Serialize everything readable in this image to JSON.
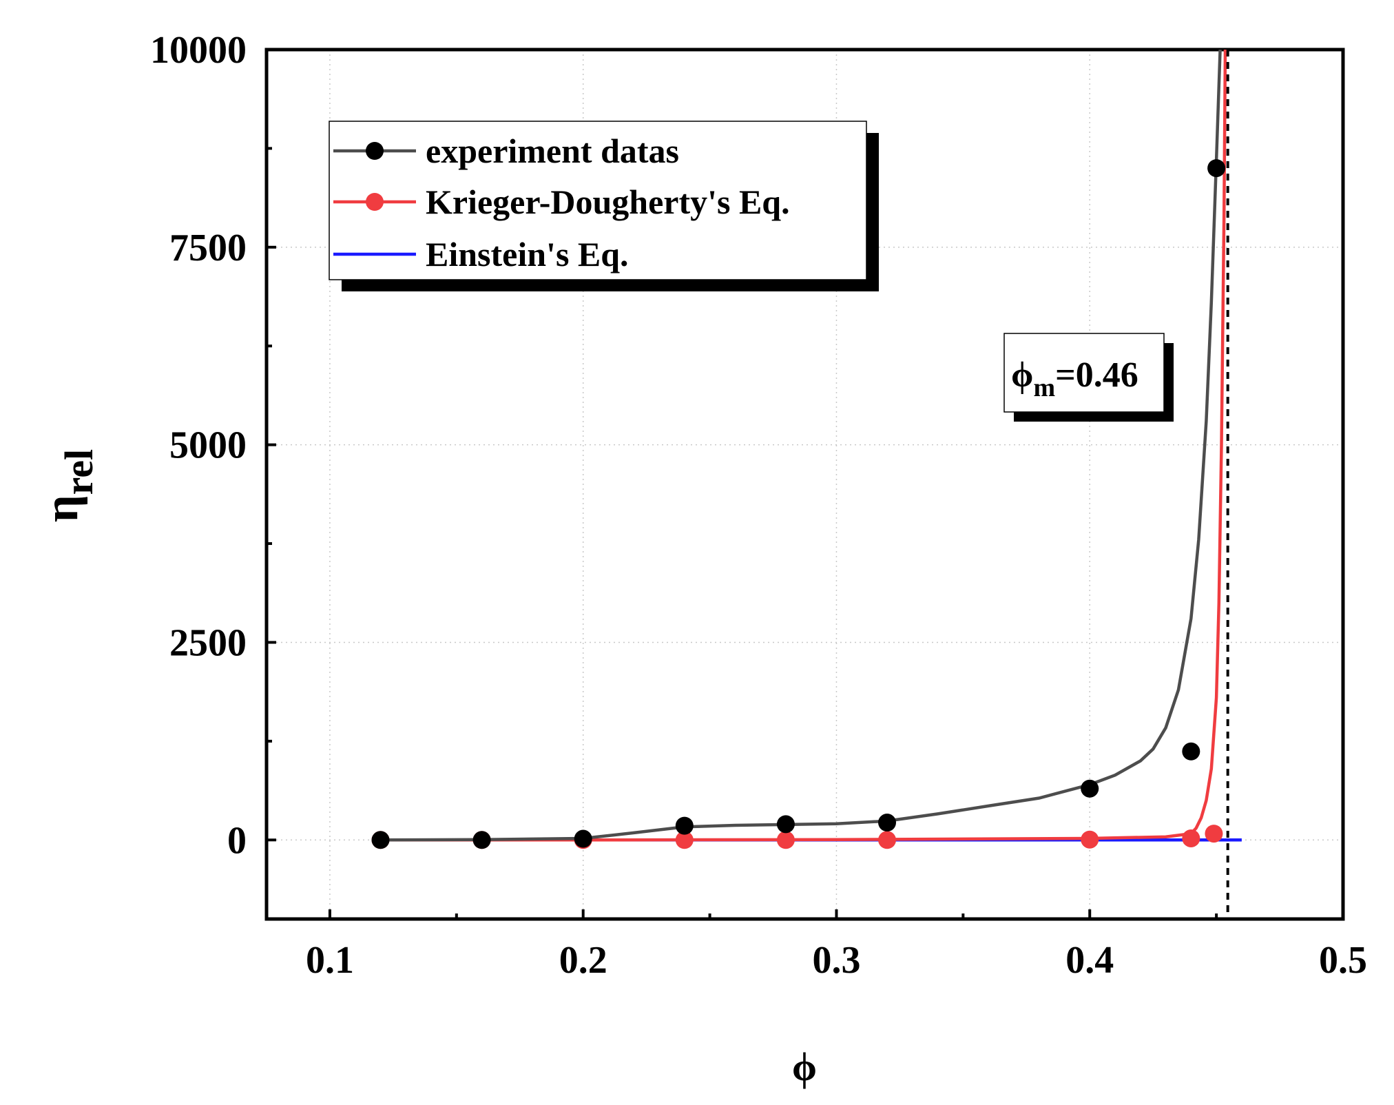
{
  "chart_data": {
    "type": "line",
    "title": "",
    "xlabel": "ϕ",
    "ylabel_main": "η",
    "ylabel_sub": "rel",
    "xlim": [
      0.075,
      0.5
    ],
    "ylim": [
      -1000,
      10000
    ],
    "x_major_ticks": [
      0.1,
      0.2,
      0.3,
      0.4,
      0.5
    ],
    "x_tick_labels": [
      "0.1",
      "0.2",
      "0.3",
      "0.4",
      "0.5"
    ],
    "x_minor_ticks": [
      0.15,
      0.25,
      0.35,
      0.45
    ],
    "y_major_ticks": [
      0,
      2500,
      5000,
      7500,
      10000
    ],
    "y_tick_labels": [
      "0",
      "2500",
      "5000",
      "7500",
      "10000"
    ],
    "y_minor_ticks": [
      1250,
      3750,
      6250,
      8750
    ],
    "grid": true,
    "legend_position": "top-left",
    "annotation": {
      "main": "ϕ",
      "sub": "m",
      "value": "=0.46",
      "x": 0.4545
    },
    "series": [
      {
        "name": "experiment datas",
        "color": "#000000",
        "line_color": "#4d4d4d",
        "points": {
          "x": [
            0.12,
            0.16,
            0.2,
            0.24,
            0.28,
            0.32,
            0.4,
            0.44,
            0.45
          ],
          "y": [
            0,
            0,
            15,
            180,
            200,
            220,
            650,
            1120,
            8500
          ]
        },
        "curve": {
          "x": [
            0.12,
            0.16,
            0.2,
            0.22,
            0.24,
            0.26,
            0.28,
            0.3,
            0.32,
            0.34,
            0.36,
            0.38,
            0.4,
            0.41,
            0.42,
            0.425,
            0.43,
            0.435,
            0.44,
            0.443,
            0.446,
            0.448,
            0.45,
            0.4515
          ],
          "y": [
            0,
            5,
            20,
            90,
            165,
            185,
            195,
            205,
            240,
            330,
            430,
            530,
            700,
            820,
            1000,
            1150,
            1420,
            1900,
            2800,
            3800,
            5300,
            6800,
            8600,
            10000
          ]
        }
      },
      {
        "name": "Krieger-Dougherty's Eq.",
        "color": "#f03c40",
        "line_color": "#f03c40",
        "points": {
          "x": [
            0.12,
            0.16,
            0.2,
            0.24,
            0.28,
            0.32,
            0.4,
            0.44,
            0.449
          ],
          "y": [
            0,
            0,
            0,
            0,
            0,
            0,
            5,
            20,
            80
          ]
        },
        "curve": {
          "x": [
            0.12,
            0.2,
            0.3,
            0.4,
            0.43,
            0.44,
            0.442,
            0.444,
            0.446,
            0.448,
            0.45,
            0.451,
            0.452,
            0.453,
            0.4535
          ],
          "y": [
            0,
            0,
            5,
            20,
            40,
            80,
            150,
            280,
            500,
            900,
            1800,
            3000,
            5000,
            7900,
            10000
          ]
        }
      },
      {
        "name": "Einstein's Eq.",
        "color": "#1a1aff",
        "line_color": "#1a1aff",
        "curve": {
          "x": [
            0.12,
            0.46
          ],
          "y": [
            0,
            0
          ]
        }
      }
    ]
  }
}
